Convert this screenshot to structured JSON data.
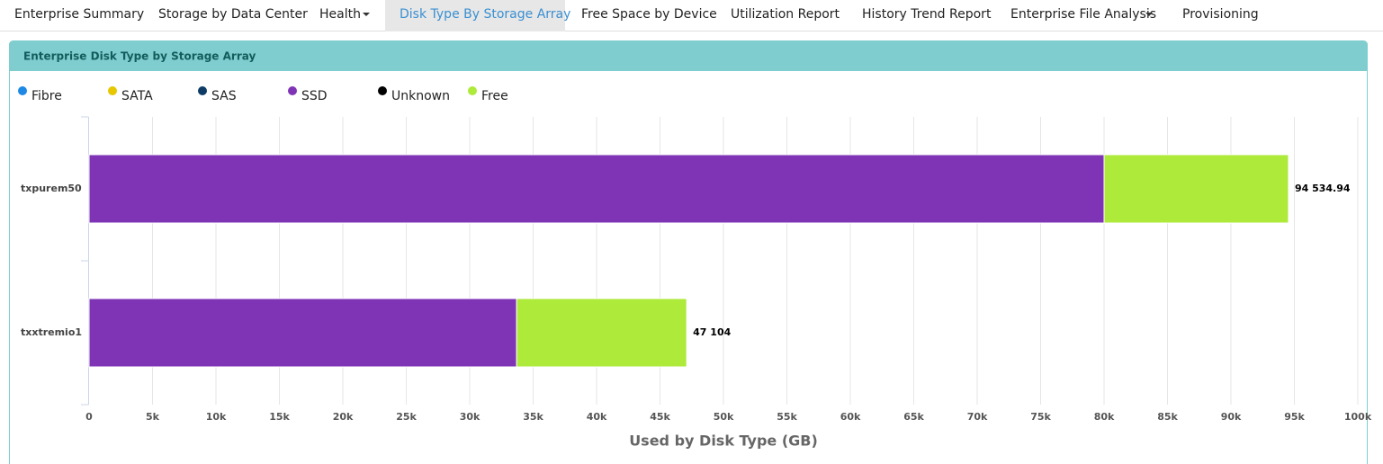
{
  "nav": {
    "items": [
      "Enterprise Summary",
      "Storage by Data Center",
      "Health",
      "Disk Type By Storage Array",
      "Free Space by Device",
      "Utilization Report",
      "History Trend Report",
      "Enterprise File Analysis",
      "Provisioning"
    ]
  },
  "panel": {
    "title": "Enterprise Disk Type by Storage Array"
  },
  "chart_data": {
    "type": "stacked_barh",
    "categories": [
      "txpurem50",
      "txxtremio1"
    ],
    "series": [
      {
        "name": "Fibre",
        "color": "#1e88e5",
        "values": [
          0,
          0
        ]
      },
      {
        "name": "SATA",
        "color": "#e6c700",
        "values": [
          0,
          0
        ]
      },
      {
        "name": "SAS",
        "color": "#0d3b66",
        "values": [
          0,
          0
        ]
      },
      {
        "name": "SSD",
        "color": "#7f34b5",
        "values": [
          80000,
          33700
        ]
      },
      {
        "name": "Unknown",
        "color": "#000000",
        "values": [
          0,
          0
        ]
      },
      {
        "name": "Free",
        "color": "#aeea3a",
        "values": [
          14534.94,
          13404
        ]
      }
    ],
    "totals": [
      94534.94,
      47104
    ],
    "total_labels": [
      "94 534.94",
      "47 104"
    ],
    "xlabel": "Used by Disk Type (GB)",
    "xlim": [
      0,
      100000
    ],
    "xticks": [
      0,
      {
        "value": 5000,
        "label": "5k"
      },
      {
        "value": 10000,
        "label": "10k"
      },
      {
        "value": 15000,
        "label": "15k"
      },
      {
        "value": 20000,
        "label": "20k"
      },
      {
        "value": 25000,
        "label": "25k"
      },
      {
        "value": 30000,
        "label": "30k"
      },
      {
        "value": 35000,
        "label": "35k"
      },
      {
        "value": 40000,
        "label": "40k"
      },
      {
        "value": 45000,
        "label": "45k"
      },
      {
        "value": 50000,
        "label": "50k"
      },
      {
        "value": 55000,
        "label": "55k"
      },
      {
        "value": 60000,
        "label": "60k"
      },
      {
        "value": 65000,
        "label": "65k"
      },
      {
        "value": 70000,
        "label": "70k"
      },
      {
        "value": 75000,
        "label": "75k"
      },
      {
        "value": 80000,
        "label": "80k"
      },
      {
        "value": 85000,
        "label": "85k"
      },
      {
        "value": 90000,
        "label": "90k"
      },
      {
        "value": 95000,
        "label": "95k"
      },
      {
        "value": 100000,
        "label": "100k"
      }
    ],
    "grid": true,
    "legend": "top"
  }
}
